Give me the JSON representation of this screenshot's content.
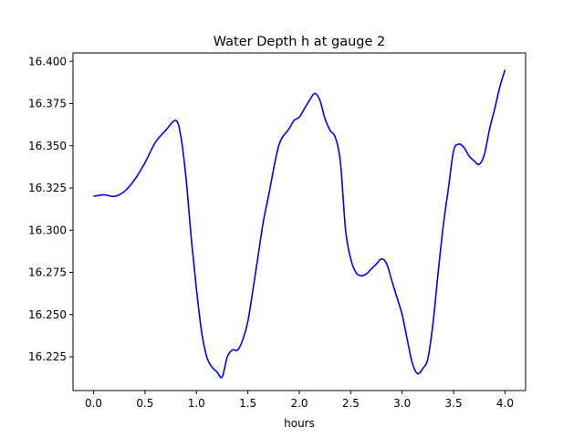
{
  "chart_data": {
    "type": "line",
    "title": "Water Depth h at gauge 2",
    "xlabel": "hours",
    "ylabel": "",
    "xlim": [
      -0.2,
      4.2
    ],
    "ylim": [
      16.205,
      16.405
    ],
    "xticks": [
      0.0,
      0.5,
      1.0,
      1.5,
      2.0,
      2.5,
      3.0,
      3.5,
      4.0
    ],
    "xtick_labels": [
      "0.0",
      "0.5",
      "1.0",
      "1.5",
      "2.0",
      "2.5",
      "3.0",
      "3.5",
      "4.0"
    ],
    "yticks": [
      16.225,
      16.25,
      16.275,
      16.3,
      16.325,
      16.35,
      16.375,
      16.4
    ],
    "ytick_labels": [
      "16.225",
      "16.250",
      "16.275",
      "16.300",
      "16.325",
      "16.350",
      "16.375",
      "16.400"
    ],
    "grid": false,
    "series": [
      {
        "color": "#0000ff",
        "x": [
          0.0,
          0.1,
          0.2,
          0.3,
          0.4,
          0.5,
          0.6,
          0.7,
          0.8,
          0.85,
          0.9,
          0.95,
          1.0,
          1.05,
          1.1,
          1.15,
          1.2,
          1.25,
          1.3,
          1.35,
          1.4,
          1.45,
          1.5,
          1.55,
          1.6,
          1.65,
          1.7,
          1.8,
          1.9,
          1.95,
          2.0,
          2.05,
          2.1,
          2.15,
          2.2,
          2.25,
          2.3,
          2.35,
          2.4,
          2.45,
          2.5,
          2.55,
          2.6,
          2.65,
          2.7,
          2.75,
          2.8,
          2.85,
          2.9,
          2.95,
          3.0,
          3.05,
          3.1,
          3.15,
          3.2,
          3.25,
          3.3,
          3.35,
          3.4,
          3.45,
          3.5,
          3.55,
          3.6,
          3.65,
          3.7,
          3.75,
          3.8,
          3.85,
          3.9,
          3.95,
          4.0
        ],
        "y": [
          16.32,
          16.321,
          16.32,
          16.323,
          16.33,
          16.34,
          16.352,
          16.359,
          16.365,
          16.355,
          16.33,
          16.295,
          16.265,
          16.24,
          16.225,
          16.219,
          16.216,
          16.213,
          16.225,
          16.229,
          16.229,
          16.235,
          16.246,
          16.265,
          16.285,
          16.305,
          16.32,
          16.35,
          16.36,
          16.365,
          16.367,
          16.372,
          16.377,
          16.381,
          16.377,
          16.366,
          16.359,
          16.355,
          16.34,
          16.3,
          16.283,
          16.275,
          16.273,
          16.274,
          16.277,
          16.28,
          16.283,
          16.28,
          16.27,
          16.26,
          16.25,
          16.235,
          16.221,
          16.215,
          16.218,
          16.224,
          16.245,
          16.275,
          16.303,
          16.325,
          16.347,
          16.351,
          16.349,
          16.344,
          16.341,
          16.339,
          16.345,
          16.36,
          16.372,
          16.385,
          16.395
        ]
      }
    ]
  }
}
